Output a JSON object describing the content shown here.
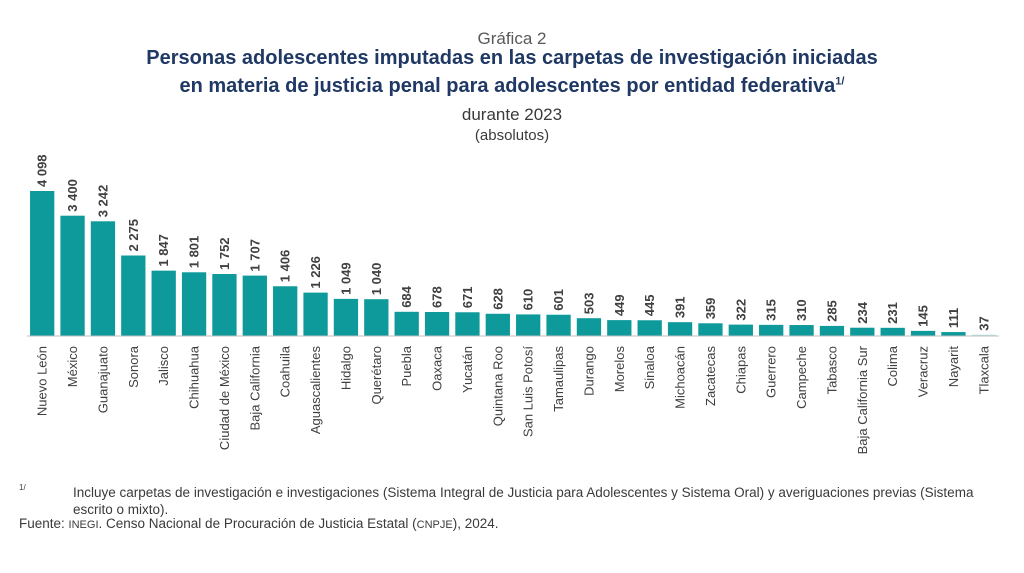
{
  "header": {
    "kicker": "Gráfica 2",
    "title_line1": "Personas adolescentes imputadas en las carpetas de investigación iniciadas",
    "title_line2": "en materia de justicia penal para adolescentes por entidad federativa",
    "title_sup": "1/",
    "subtitle": "durante 2023",
    "units": "(absolutos)"
  },
  "chart_data": {
    "type": "bar",
    "title": "Personas adolescentes imputadas en las carpetas de investigación iniciadas en materia de justicia penal para adolescentes por entidad federativa durante 2023 (absolutos)",
    "categories": [
      "Nuevo León",
      "México",
      "Guanajuato",
      "Sonora",
      "Jalisco",
      "Chihuahua",
      "Ciudad de México",
      "Baja California",
      "Coahuila",
      "Aguascalientes",
      "Hidalgo",
      "Querétaro",
      "Puebla",
      "Oaxaca",
      "Yucatán",
      "Quintana Roo",
      "San Luis Potosí",
      "Tamaulipas",
      "Durango",
      "Morelos",
      "Sinaloa",
      "Michoacán",
      "Zacatecas",
      "Chiapas",
      "Guerrero",
      "Campeche",
      "Tabasco",
      "Baja California Sur",
      "Colima",
      "Veracruz",
      "Nayarit",
      "Tlaxcala"
    ],
    "values": [
      4098,
      3400,
      3242,
      2275,
      1847,
      1801,
      1752,
      1707,
      1406,
      1226,
      1049,
      1040,
      684,
      678,
      671,
      628,
      610,
      601,
      503,
      449,
      445,
      391,
      359,
      322,
      315,
      310,
      285,
      234,
      231,
      145,
      111,
      37
    ],
    "value_labels": [
      "4 098",
      "3 400",
      "3 242",
      "2 275",
      "1 847",
      "1 801",
      "1 752",
      "1 707",
      "1 406",
      "1 226",
      "1 049",
      "1 040",
      "684",
      "678",
      "671",
      "628",
      "610",
      "601",
      "503",
      "449",
      "445",
      "391",
      "359",
      "322",
      "315",
      "310",
      "285",
      "234",
      "231",
      "145",
      "111",
      "37"
    ],
    "ylim": [
      0,
      4200
    ],
    "grid": false,
    "bar_color": "#0e9a9a",
    "highlight_color": "#b9e2e0",
    "highlight_index": 31
  },
  "footnote": {
    "mark": "1/",
    "text": "Incluye carpetas de investigación e investigaciones (Sistema Integral de Justicia para Adolescentes y Sistema Oral) y averiguaciones previas (Sistema escrito o mixto)."
  },
  "source": {
    "label": "Fuente:",
    "org": "INEGI",
    "text_a": ". Censo Nacional de Procuración de Justicia Estatal (",
    "abbr": "CNPJE",
    "text_b": "), 2024."
  }
}
